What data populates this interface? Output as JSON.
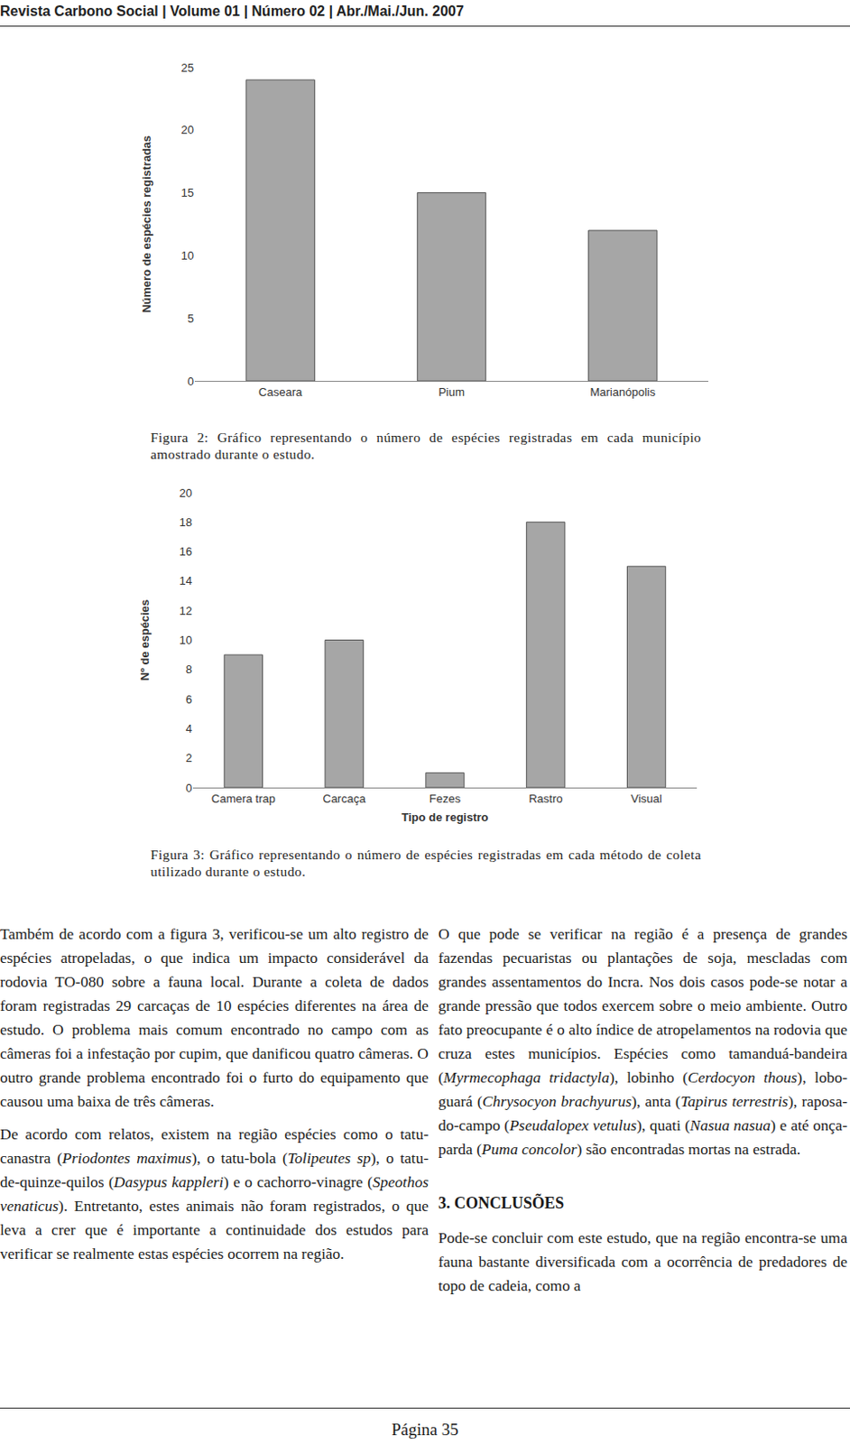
{
  "chart_data": [
    {
      "type": "bar",
      "categories": [
        "Caseara",
        "Pium",
        "Marianópolis"
      ],
      "values": [
        24,
        15,
        12
      ],
      "ylabel": "Número de espécies registradas",
      "ylim": [
        0,
        25
      ],
      "yticks": [
        0,
        5,
        10,
        15,
        20,
        25
      ],
      "color": "#a6a6a6",
      "grid": false,
      "caption": "Figura 2: Gráfico representando o número de espécies registradas em cada município amostrado durante o estudo."
    },
    {
      "type": "bar",
      "categories": [
        "Camera trap",
        "Carcaça",
        "Fezes",
        "Rastro",
        "Visual"
      ],
      "values": [
        9,
        10,
        1,
        18,
        15
      ],
      "xlabel": "Tipo de registro",
      "ylabel": "Nº de espécies",
      "ylim": [
        0,
        20
      ],
      "yticks": [
        0,
        2,
        4,
        6,
        8,
        10,
        12,
        14,
        16,
        18,
        20
      ],
      "color": "#a6a6a6",
      "grid": false,
      "caption": "Figura 3: Gráfico representando o número de espécies registradas em cada método de coleta utilizado durante o estudo."
    }
  ],
  "document": {
    "header": "Revista Carbono Social | Volume 01 | Número 02 | Abr./Mai./Jun. 2007",
    "left_column": [
      {
        "paragraph": [
          "Também de acordo com a figura 3, verificou-se um alto registro de espécies atropeladas, o que indica um impacto considerável da rodovia TO-080 sobre a fauna local. Durante a coleta de dados foram registradas 29 carcaças de 10 espécies diferentes na área de estudo. O problema mais comum encontrado no campo com as câmeras foi a infestação por cupim, que danificou quatro câmeras. O outro grande problema encontrado foi o furto do equipamento que causou uma baixa de três câmeras."
        ]
      },
      {
        "paragraph": [
          "De acordo com relatos, existem na região espécies como o tatu-canastra (",
          {
            "i": "Priodontes maximus"
          },
          "), o tatu-bola (",
          {
            "i": "Tolipeutes sp"
          },
          "), o tatu-de-quinze-quilos (",
          {
            "i": "Dasypus kappleri"
          },
          ") e o cachorro-vinagre (",
          {
            "i": "Speothos venaticus"
          },
          "). Entretanto, estes animais não foram registrados, o que leva a crer que é importante a continuidade dos estudos para verificar se realmente estas espécies ocorrem na região."
        ]
      }
    ],
    "right_column": [
      {
        "paragraph": [
          "O que pode se verificar na região é a presença de grandes fazendas pecuaristas ou plantações de soja, mescladas com grandes assentamentos do Incra. Nos dois casos pode-se notar a grande pressão que todos exercem sobre o meio ambiente. Outro fato preocupante é o alto índice de atropelamentos na rodovia que cruza estes municípios. Espécies como tamanduá-bandeira (",
          {
            "i": "Myrmecophaga tridactyla"
          },
          "), lobinho (",
          {
            "i": "Cerdocyon thous"
          },
          "), lobo-guará (",
          {
            "i": "Chrysocyon brachyurus"
          },
          "), anta (",
          {
            "i": "Tapirus terrestris"
          },
          "), raposa-do-campo (",
          {
            "i": "Pseudalopex vetulus"
          },
          "), quati (",
          {
            "i": "Nasua nasua"
          },
          ") e até onça-parda (",
          {
            "i": "Puma concolor"
          },
          ") são encontradas mortas na estrada."
        ]
      },
      {
        "heading": "3. CONCLUSÕES"
      },
      {
        "paragraph": [
          "Pode-se concluir com este estudo, que na região encontra-se uma fauna bastante diversificada com a ocorrência de predadores de topo de cadeia, como a"
        ]
      }
    ],
    "footer": "Página 35"
  }
}
